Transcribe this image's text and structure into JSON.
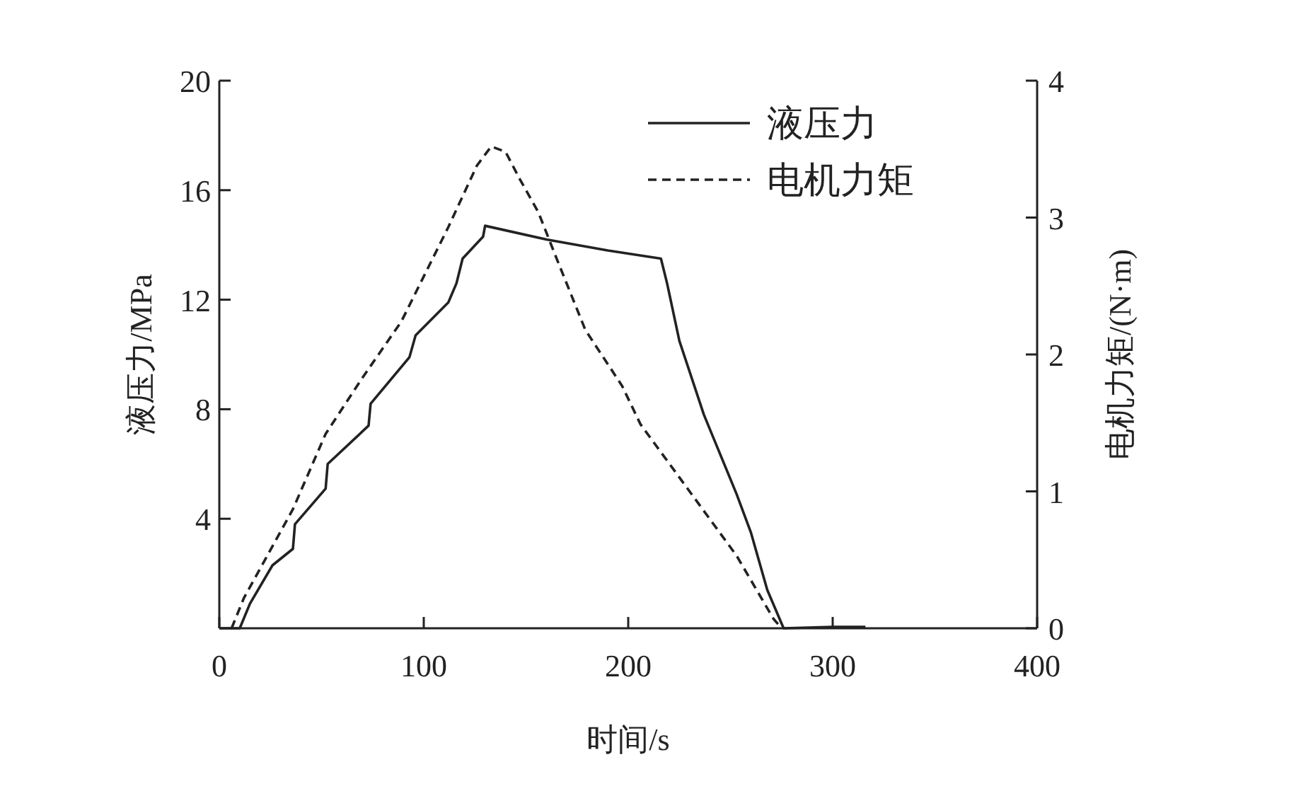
{
  "chart_data": {
    "type": "line",
    "xlabel": "时间/s",
    "ylabel": "液压力/MPa",
    "y2label": "电机力矩/(N·m)",
    "xlim": [
      0,
      400
    ],
    "xticks": [
      0,
      100,
      200,
      300,
      400
    ],
    "ylim": [
      0,
      20
    ],
    "yticks": [
      4,
      8,
      12,
      16,
      20
    ],
    "y2lim": [
      0,
      4
    ],
    "y2ticks": [
      0,
      1,
      2,
      3,
      4
    ],
    "legend": "top right",
    "marker": "none",
    "series": [
      {
        "name": "液压力",
        "color": "#222222",
        "line_style": "solid",
        "x": [
          0,
          10,
          15,
          26,
          36,
          37,
          52,
          53,
          73,
          74,
          93,
          96,
          112,
          116,
          119,
          129,
          130,
          160,
          190,
          216,
          219,
          225,
          237,
          253,
          260,
          268,
          276,
          300,
          316
        ],
        "values": [
          0,
          0,
          0.9,
          2.3,
          2.9,
          3.8,
          5.1,
          6.0,
          7.4,
          8.2,
          9.9,
          10.7,
          11.9,
          12.6,
          13.5,
          14.3,
          14.7,
          14.2,
          13.8,
          13.5,
          12.6,
          10.5,
          7.8,
          4.9,
          3.5,
          1.4,
          0,
          0.05,
          0.05
        ]
      },
      {
        "name": "电机力矩",
        "color": "#222222",
        "line_style": "dashed",
        "axis": "y2",
        "x": [
          6,
          12,
          36,
          52,
          70,
          89,
          112,
          126,
          133,
          140,
          147,
          156,
          165,
          179,
          197,
          206,
          230,
          253,
          271,
          275
        ],
        "values": [
          0,
          0.22,
          0.87,
          1.42,
          1.83,
          2.24,
          2.93,
          3.38,
          3.52,
          3.48,
          3.28,
          3.04,
          2.7,
          2.18,
          1.77,
          1.49,
          1.0,
          0.53,
          0.07,
          0
        ]
      }
    ]
  }
}
